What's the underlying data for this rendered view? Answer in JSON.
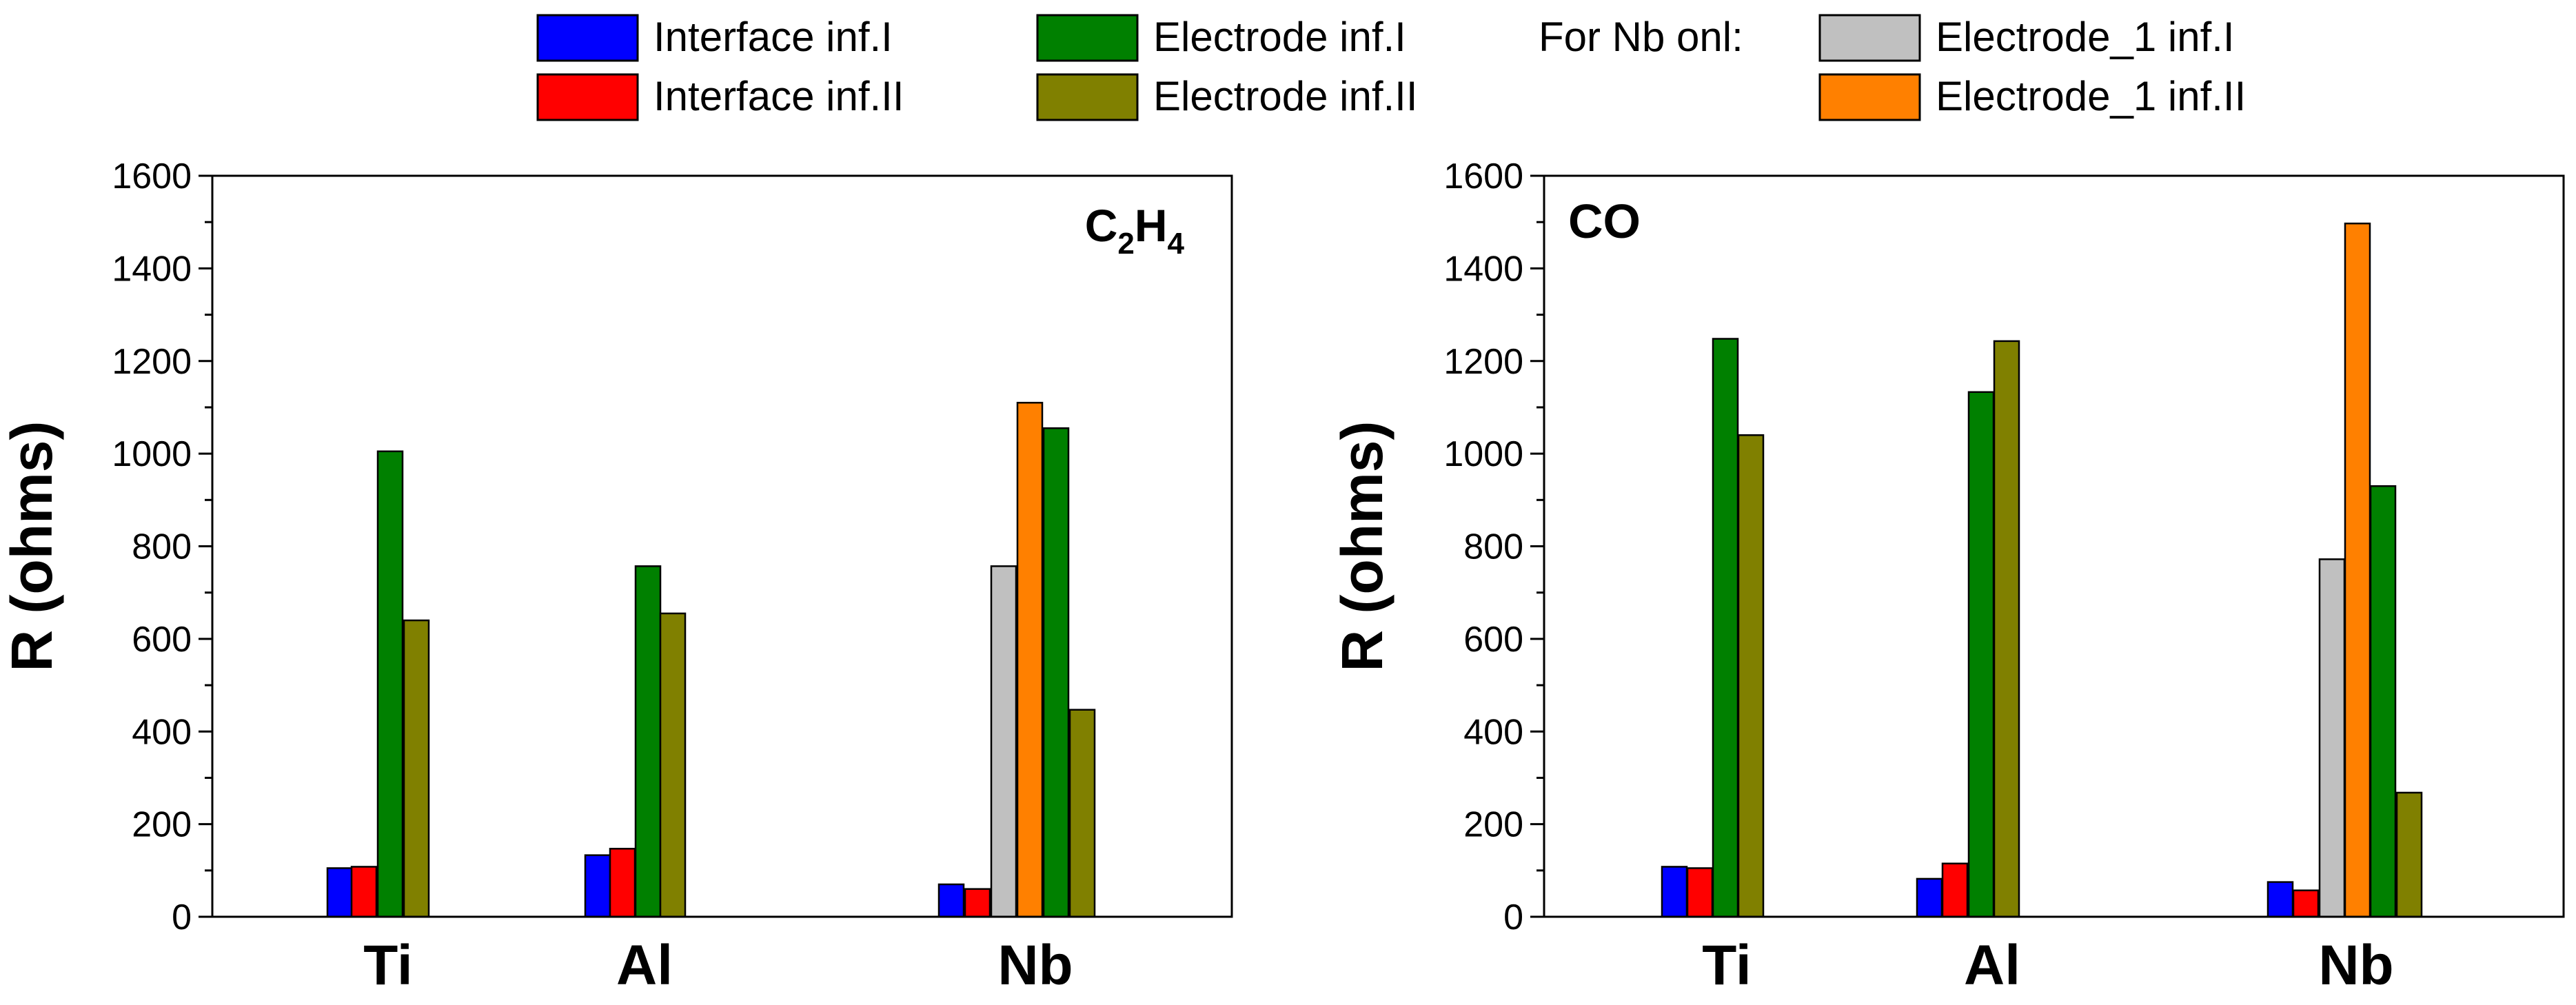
{
  "legend": {
    "note": "For Nb onl:",
    "items": [
      {
        "label": "Interface inf.I",
        "color": "#0000ff"
      },
      {
        "label": "Interface inf.II",
        "color": "#ff0000"
      },
      {
        "label": "Electrode inf.I",
        "color": "#008000"
      },
      {
        "label": "Electrode inf.II",
        "color": "#808000"
      },
      {
        "label": "Electrode_1 inf.I",
        "color": "#c0c0c0"
      },
      {
        "label": "Electrode_1 inf.II",
        "color": "#ff8000"
      }
    ]
  },
  "chart_data": [
    {
      "type": "bar",
      "panel_label": {
        "base": "C",
        "sub1": "2",
        "mid": "H",
        "sub2": "4"
      },
      "panel_label_text": "C2H4",
      "ylabel": "R (ohms)",
      "xlabel": "",
      "ylim": [
        0,
        1600
      ],
      "yticks": [
        0,
        200,
        400,
        600,
        800,
        1000,
        1200,
        1400,
        1600
      ],
      "categories": [
        "Ti",
        "Al",
        "Nb"
      ],
      "series": [
        {
          "name": "Interface inf.I",
          "values": [
            105,
            133,
            70
          ]
        },
        {
          "name": "Interface inf.II",
          "values": [
            108,
            147,
            60
          ]
        },
        {
          "name": "Electrode_1 inf.I",
          "values": [
            null,
            null,
            757
          ]
        },
        {
          "name": "Electrode_1 inf.II",
          "values": [
            null,
            null,
            1110
          ]
        },
        {
          "name": "Electrode inf.I",
          "values": [
            1005,
            757,
            1055
          ]
        },
        {
          "name": "Electrode inf.II",
          "values": [
            640,
            655,
            447
          ]
        }
      ]
    },
    {
      "type": "bar",
      "panel_label": {
        "base": "CO",
        "sub1": "",
        "mid": "",
        "sub2": ""
      },
      "panel_label_text": "CO",
      "ylabel": "R (ohms)",
      "xlabel": "",
      "ylim": [
        0,
        1600
      ],
      "yticks": [
        0,
        200,
        400,
        600,
        800,
        1000,
        1200,
        1400,
        1600
      ],
      "categories": [
        "Ti",
        "Al",
        "Nb"
      ],
      "series": [
        {
          "name": "Interface inf.I",
          "values": [
            108,
            82,
            75
          ]
        },
        {
          "name": "Interface inf.II",
          "values": [
            105,
            115,
            57
          ]
        },
        {
          "name": "Electrode_1 inf.I",
          "values": [
            null,
            null,
            772
          ]
        },
        {
          "name": "Electrode_1 inf.II",
          "values": [
            null,
            null,
            1497
          ]
        },
        {
          "name": "Electrode inf.I",
          "values": [
            1248,
            1133,
            930
          ]
        },
        {
          "name": "Electrode inf.II",
          "values": [
            1040,
            1243,
            268
          ]
        }
      ]
    }
  ]
}
